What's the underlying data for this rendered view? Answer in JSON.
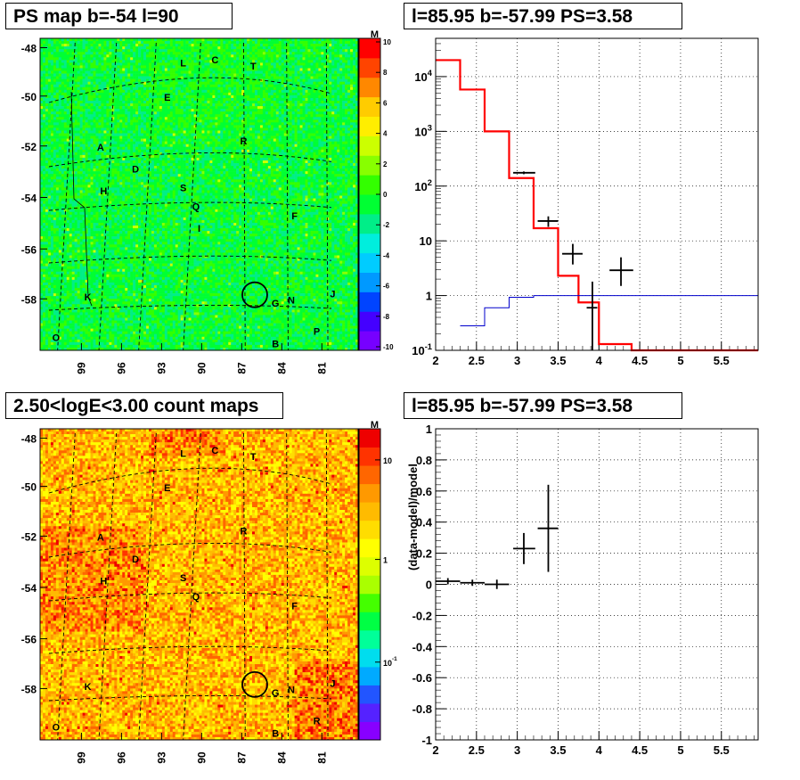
{
  "chart_data": [
    {
      "type": "heatmap",
      "title": "PS map b=-54 l=90",
      "x_ticks": [
        "99",
        "96",
        "93",
        "90",
        "87",
        "84",
        "81"
      ],
      "y_ticks": [
        "-48",
        "-50",
        "-52",
        "-54",
        "-56",
        "-58"
      ],
      "colorbar_ticks": [
        "10",
        "8",
        "6",
        "4",
        "2",
        "0",
        "-2",
        "-4",
        "-6",
        "-8",
        "-10"
      ],
      "colorbar_corner_label": "M",
      "source_labels": [
        "L",
        "C",
        "T",
        "E",
        "R",
        "A",
        "D",
        "S",
        "H",
        "Q",
        "I",
        "F",
        "K",
        "G",
        "N",
        "J",
        "O",
        "B",
        "P"
      ],
      "highlight_circle": "source at l=85.95 b=-57.99"
    },
    {
      "type": "line",
      "title": "l=85.95 b=-57.99 PS=3.58",
      "x_ticks": [
        "2",
        "2.5",
        "3",
        "3.5",
        "4",
        "4.5",
        "5",
        "5.5"
      ],
      "y_scale": "log",
      "y_ticks": [
        "10^4",
        "10^3",
        "10^2",
        "10",
        "1",
        "10^-1"
      ],
      "xlim": [
        2,
        5.95
      ],
      "ylim": [
        0.1,
        50000
      ],
      "grid": true,
      "series": [
        {
          "color": "#ff0000",
          "bins": [
            [
              2.0,
              2.3,
              20000
            ],
            [
              2.3,
              2.6,
              5800
            ],
            [
              2.6,
              2.9,
              1000
            ],
            [
              2.9,
              3.2,
              140
            ],
            [
              3.2,
              3.5,
              17
            ],
            [
              3.5,
              3.75,
              2.3
            ],
            [
              3.75,
              4.0,
              0.75
            ],
            [
              4.0,
              4.4,
              0.13
            ],
            [
              4.4,
              5.95,
              0.1
            ]
          ]
        },
        {
          "color": "#0000cc",
          "bins": [
            [
              2.3,
              2.6,
              0.28
            ],
            [
              2.6,
              2.9,
              0.6
            ],
            [
              2.9,
              3.2,
              0.93
            ],
            [
              3.2,
              5.95,
              1.0
            ]
          ]
        },
        {
          "color": "#000000",
          "points": [
            [
              3.08,
              175,
              2.95,
              3.22,
              165,
              185
            ],
            [
              3.38,
              23,
              3.25,
              3.5,
              18,
              28
            ],
            [
              3.68,
              5.8,
              3.55,
              3.8,
              3.7,
              8.8
            ],
            [
              3.92,
              0.6,
              3.85,
              3.98,
              0.1,
              1.8
            ],
            [
              4.27,
              2.9,
              4.13,
              4.42,
              1.5,
              5.0
            ]
          ]
        }
      ]
    },
    {
      "type": "heatmap",
      "title": "2.50<logE<3.00 count maps",
      "x_ticks": [
        "99",
        "96",
        "93",
        "90",
        "87",
        "84",
        "81"
      ],
      "y_ticks": [
        "-48",
        "-50",
        "-52",
        "-54",
        "-56",
        "-58"
      ],
      "colorbar_ticks": [
        "10",
        "1",
        "10^-1"
      ],
      "colorbar_corner_label": "M",
      "source_labels": [
        "L",
        "C",
        "T",
        "E",
        "R",
        "A",
        "D",
        "S",
        "H",
        "Q",
        "F",
        "K",
        "G",
        "N",
        "J",
        "O",
        "B",
        "R"
      ],
      "highlight_circle": "source at l=85.95 b=-57.99"
    },
    {
      "type": "scatter",
      "title": "l=85.95 b=-57.99 PS=3.58",
      "ylabel": "(data-model)/model",
      "x_ticks": [
        "2",
        "2.5",
        "3",
        "3.5",
        "4",
        "4.5",
        "5",
        "5.5"
      ],
      "y_ticks": [
        "1",
        "0.8",
        "0.6",
        "0.4",
        "0.2",
        "0",
        "-0.2",
        "-0.4",
        "-0.6",
        "-0.8",
        "-1"
      ],
      "xlim": [
        2,
        5.95
      ],
      "ylim": [
        -1,
        1
      ],
      "grid": true,
      "series": [
        {
          "color": "#000000",
          "points": [
            [
              2.15,
              0.02,
              2.0,
              2.3,
              0.0,
              0.04
            ],
            [
              2.45,
              0.01,
              2.3,
              2.6,
              -0.01,
              0.03
            ],
            [
              2.75,
              0.0,
              2.6,
              2.9,
              -0.03,
              0.03
            ],
            [
              3.08,
              0.23,
              2.95,
              3.22,
              0.13,
              0.33
            ],
            [
              3.38,
              0.36,
              3.25,
              3.5,
              0.08,
              0.64
            ]
          ]
        }
      ]
    }
  ]
}
